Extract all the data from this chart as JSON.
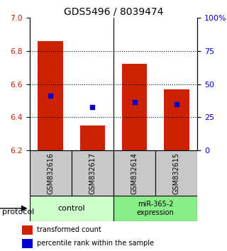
{
  "title": "GDS5496 / 8039474",
  "samples": [
    "GSM832616",
    "GSM832617",
    "GSM832614",
    "GSM832615"
  ],
  "bar_bottom": 6.2,
  "bar_tops": [
    6.86,
    6.35,
    6.72,
    6.57
  ],
  "percentile_values": [
    6.53,
    6.46,
    6.49,
    6.48
  ],
  "bar_color": "#cc2200",
  "percentile_color": "#0000cc",
  "ylim_left": [
    6.2,
    7.0
  ],
  "yticks_left": [
    6.2,
    6.4,
    6.6,
    6.8,
    7.0
  ],
  "ylim_right": [
    0,
    100
  ],
  "yticks_right": [
    0,
    25,
    50,
    75,
    100
  ],
  "yticklabels_right": [
    "0",
    "25",
    "50",
    "75",
    "100%"
  ],
  "bar_width": 0.6,
  "legend_red_label": "transformed count",
  "legend_blue_label": "percentile rank within the sample",
  "left_tick_color": "#cc2200",
  "right_tick_color": "#0000cc",
  "sample_box_color": "#c8c8c8",
  "control_color": "#ccffcc",
  "mir_color": "#88ee88",
  "dotted_ticks": [
    6.4,
    6.6,
    6.8
  ],
  "control_samples": 2,
  "mir_samples": 2
}
